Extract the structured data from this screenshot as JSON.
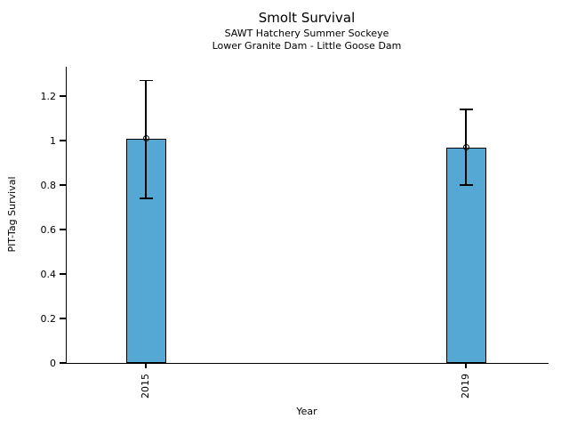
{
  "chart_data": {
    "type": "bar",
    "title": "Smolt Survival",
    "subtitle1": "SAWT Hatchery Summer Sockeye",
    "subtitle2": "Lower Granite Dam - Little Goose Dam",
    "xlabel": "Year",
    "ylabel": "PIT-Tag Survival",
    "categories": [
      "2015",
      "2019"
    ],
    "values": [
      1.01,
      0.97
    ],
    "error_low": [
      0.74,
      0.8
    ],
    "error_high": [
      1.27,
      1.14
    ],
    "yticks": [
      "0",
      "0.2",
      "0.4",
      "0.6",
      "0.8",
      "1",
      "1.2"
    ],
    "ytick_values": [
      0,
      0.2,
      0.4,
      0.6,
      0.8,
      1.0,
      1.2
    ],
    "ylim": [
      0,
      1.33
    ],
    "grid": false,
    "legend": "none",
    "marker": "open-circle",
    "bar_fill": "#56a8d4",
    "bar_stroke": "#000000",
    "error_color": "#000000",
    "xtick_rotation": -90
  }
}
